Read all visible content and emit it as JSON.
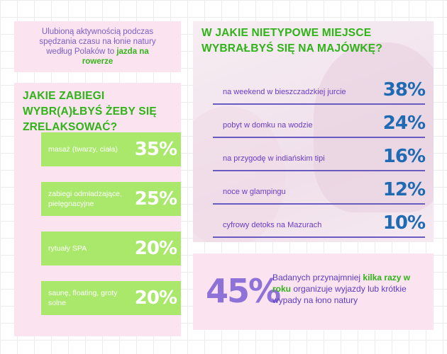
{
  "intro": {
    "text_before": "Ulubioną aktywnością podczas spędzania  czasu na łonie natury według Polaków to ",
    "highlight": "jazda na rowerze"
  },
  "chart_data": [
    {
      "type": "bar",
      "title": "JAKIE ZABIEGI WYBR(A)ŁBYŚ ŻEBY SIĘ ZRELAKSOWAĆ?",
      "categories": [
        "masaż (twarzy, ciała)",
        "zabiegi odmładzające, pielęgnacyjne",
        "rytuały SPA",
        "saunę, floating, groty solne"
      ],
      "values": [
        35,
        25,
        20,
        20
      ],
      "value_labels": [
        "35%",
        "25%",
        "20%",
        "20%"
      ],
      "unit": "%",
      "color": "#a9e86a"
    },
    {
      "type": "table",
      "title": "W JAKIE NIETYPOWE MIEJSCE WYBRAŁBYŚ SIĘ NA MAJÓWKĘ?",
      "categories": [
        "na weekend w bieszczadzkiej jurcie",
        "pobyt w domku na wodzie",
        "na przygodę w indiańskim tipi",
        "noce w glampingu",
        "cyfrowy detoks na Mazurach"
      ],
      "values": [
        38,
        24,
        16,
        12,
        10
      ],
      "value_labels": [
        "38%",
        "24%",
        "16%",
        "12%",
        "10%"
      ],
      "unit": "%",
      "color": "#1e6ab3"
    }
  ],
  "stat": {
    "value": "45%",
    "text_before": "Badanych przynajmniej ",
    "highlight": "kilka razy w roku",
    "text_after": " organizuje wyjazdy lub krótkie wypady na łono natury"
  },
  "colors": {
    "accent_green": "#2fb318",
    "bar_green": "#a9e86a",
    "panel_pink": "#fbe3ef",
    "text_purple": "#6a3cc7",
    "pct_blue": "#1e6ab3",
    "big_purple": "#8e72d8"
  }
}
